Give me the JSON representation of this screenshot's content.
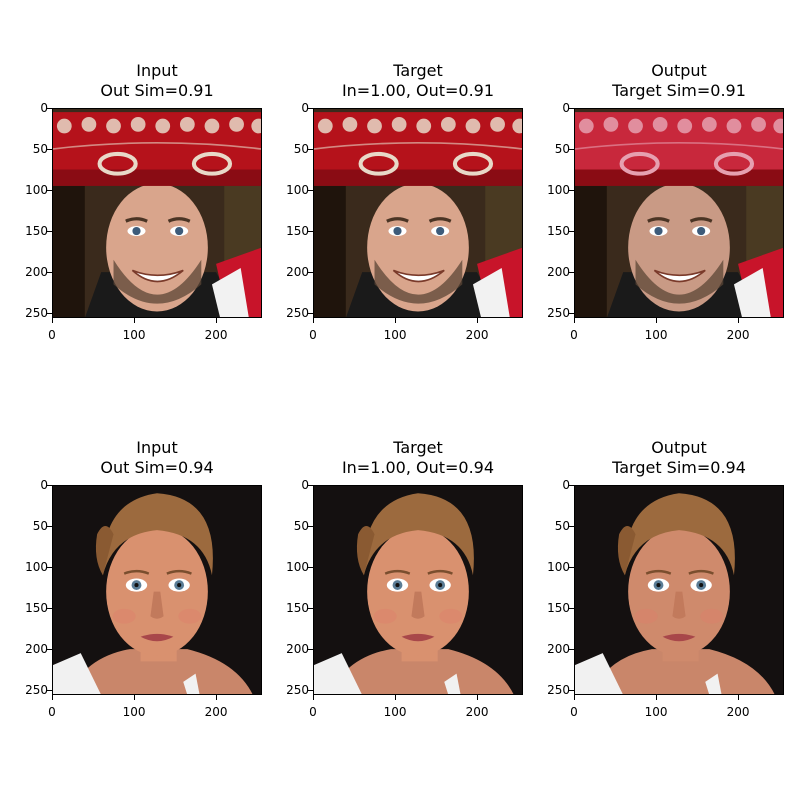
{
  "rows": [
    {
      "panels": [
        {
          "title_line1": "Input",
          "title_line2": "Out Sim=0.91",
          "subject": "man-sombrero-photo"
        },
        {
          "title_line1": "Target",
          "title_line2": "In=1.00, Out=0.91",
          "subject": "man-sombrero-photo"
        },
        {
          "title_line1": "Output",
          "title_line2": "Target Sim=0.91",
          "subject": "man-sombrero-photo-reconstructed"
        }
      ]
    },
    {
      "panels": [
        {
          "title_line1": "Input",
          "title_line2": "Out Sim=0.94",
          "subject": "woman-portrait-photo"
        },
        {
          "title_line1": "Target",
          "title_line2": "In=1.00, Out=0.94",
          "subject": "woman-portrait-photo"
        },
        {
          "title_line1": "Output",
          "title_line2": "Target Sim=0.94",
          "subject": "woman-portrait-photo-reconstructed"
        }
      ]
    }
  ],
  "axes": {
    "x_ticks": [
      "0",
      "100",
      "200"
    ],
    "y_ticks": [
      "0",
      "50",
      "100",
      "150",
      "200",
      "250"
    ]
  }
}
